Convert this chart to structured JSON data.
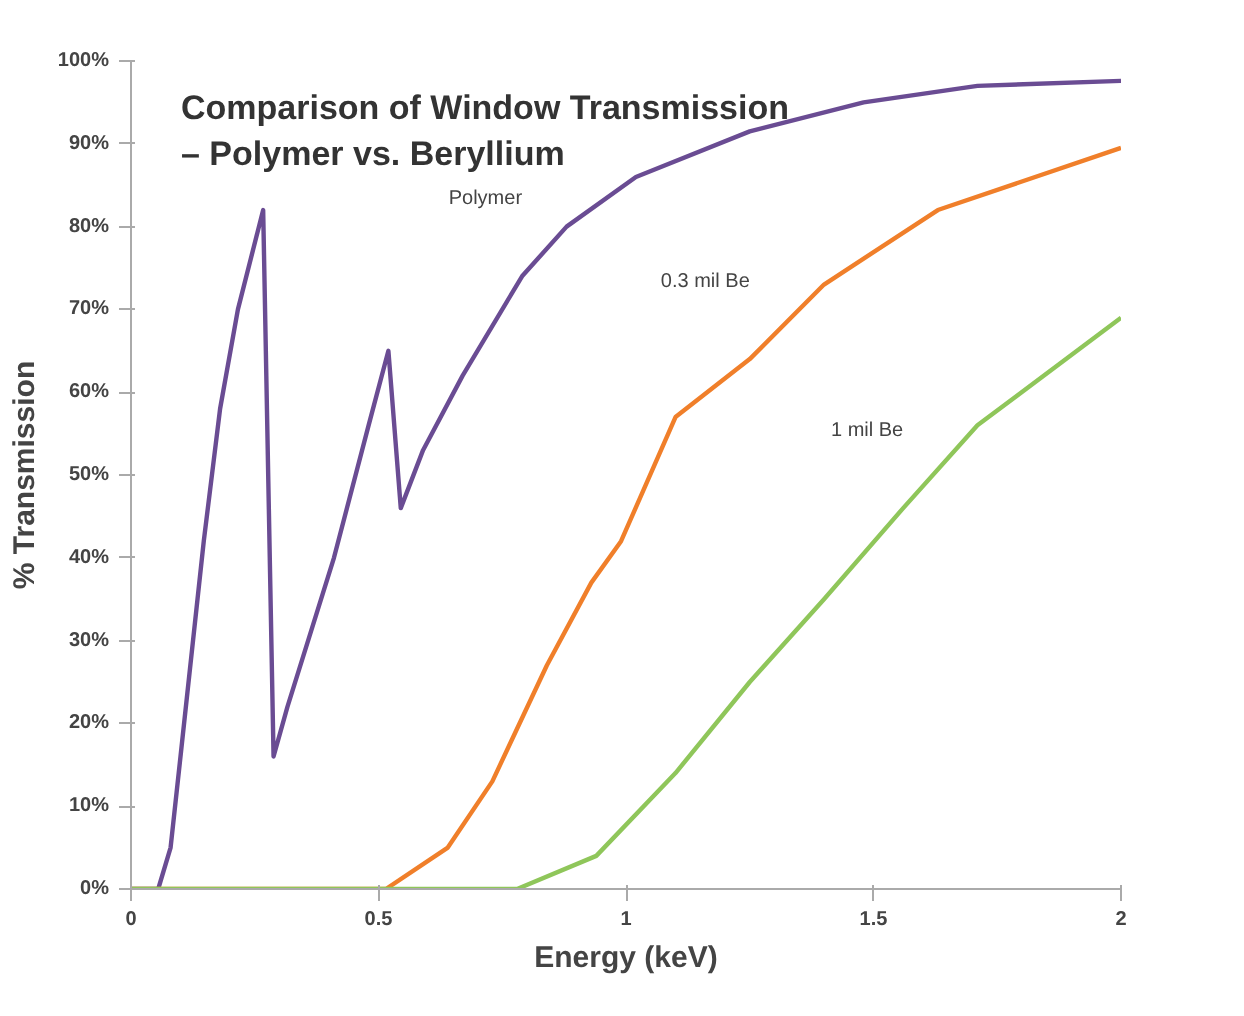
{
  "chart_data": {
    "type": "line",
    "title": "Comparison of Window Transmission\n– Polymer vs. Beryllium",
    "xlabel": "Energy (keV)",
    "ylabel": "% Transmission",
    "xlim": [
      0,
      2
    ],
    "ylim": [
      0,
      100
    ],
    "xticks": [
      0,
      0.5,
      1,
      1.5,
      2
    ],
    "yticks": [
      {
        "value": 0,
        "label": "0%"
      },
      {
        "value": 10,
        "label": "10%"
      },
      {
        "value": 20,
        "label": "20%"
      },
      {
        "value": 30,
        "label": "30%"
      },
      {
        "value": 40,
        "label": "40%"
      },
      {
        "value": 50,
        "label": "50%"
      },
      {
        "value": 60,
        "label": "60%"
      },
      {
        "value": 70,
        "label": "70%"
      },
      {
        "value": 80,
        "label": "80%"
      },
      {
        "value": 90,
        "label": "90%"
      },
      {
        "value": 100,
        "label": "100%"
      }
    ],
    "grid": false,
    "series": [
      {
        "name": "Polymer",
        "color": "#6a4c93",
        "x": [
          0,
          0.055,
          0.08,
          0.1,
          0.147,
          0.18,
          0.216,
          0.267,
          0.288,
          0.316,
          0.41,
          0.48,
          0.52,
          0.545,
          0.59,
          0.67,
          0.79,
          0.88,
          1.02,
          1.25,
          1.48,
          1.71,
          2.0
        ],
        "values": [
          0,
          0,
          5,
          16,
          42,
          58,
          70,
          82,
          16,
          22,
          40,
          56,
          65,
          46,
          53,
          62,
          74,
          80,
          86,
          91.5,
          95,
          97,
          97.6
        ]
      },
      {
        "name": "0.3 mil Be",
        "color": "#f07f2a",
        "x": [
          0,
          0.515,
          0.64,
          0.73,
          0.84,
          0.93,
          0.99,
          1.1,
          1.25,
          1.4,
          1.63,
          2.0
        ],
        "values": [
          0,
          0,
          5,
          13,
          27,
          37,
          42,
          57,
          64,
          73,
          82,
          89.5
        ]
      },
      {
        "name": "1 mil Be",
        "color": "#8fc65a",
        "x": [
          0,
          0.78,
          0.94,
          1.1,
          1.25,
          1.4,
          1.56,
          1.71,
          2.0
        ],
        "values": [
          0,
          0,
          4,
          14,
          25,
          35,
          46,
          56,
          69
        ]
      }
    ]
  }
}
